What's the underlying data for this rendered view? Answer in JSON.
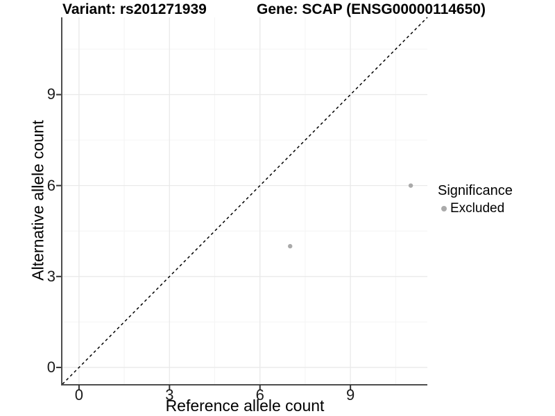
{
  "chart_data": {
    "type": "scatter",
    "titles": {
      "variant": "Variant: rs201271939",
      "gene": "Gene: SCAP (ENSG00000114650)"
    },
    "xlabel": "Reference allele count",
    "ylabel": "Alternative allele count",
    "xlim": [
      -0.55,
      11.55
    ],
    "ylim": [
      -0.55,
      11.55
    ],
    "x_ticks": [
      0,
      3,
      6,
      9
    ],
    "y_ticks": [
      0,
      3,
      6,
      9
    ],
    "x_minor_gridlines": [
      1.5,
      4.5,
      7.5,
      10.5
    ],
    "y_minor_gridlines": [
      1.5,
      4.5,
      7.5,
      10.5
    ],
    "grid": true,
    "reference_line": {
      "type": "identity",
      "slope": 1,
      "intercept": 0,
      "style": "dashed",
      "color": "#000000"
    },
    "series": [
      {
        "name": "Excluded",
        "color": "#aaaaaa",
        "points": [
          {
            "x": 7,
            "y": 4
          },
          {
            "x": 11,
            "y": 6
          }
        ]
      }
    ],
    "legend": {
      "title": "Significance",
      "position": "right",
      "items": [
        {
          "label": "Excluded",
          "color": "#aaaaaa"
        }
      ]
    }
  },
  "colors": {
    "background": "#ffffff",
    "axis_line": "#4d4d4d",
    "tick_mark": "#333333",
    "tick_label": "#1a1a1a",
    "grid_major": "#e9e9e9",
    "grid_minor": "#f4f4f4"
  }
}
